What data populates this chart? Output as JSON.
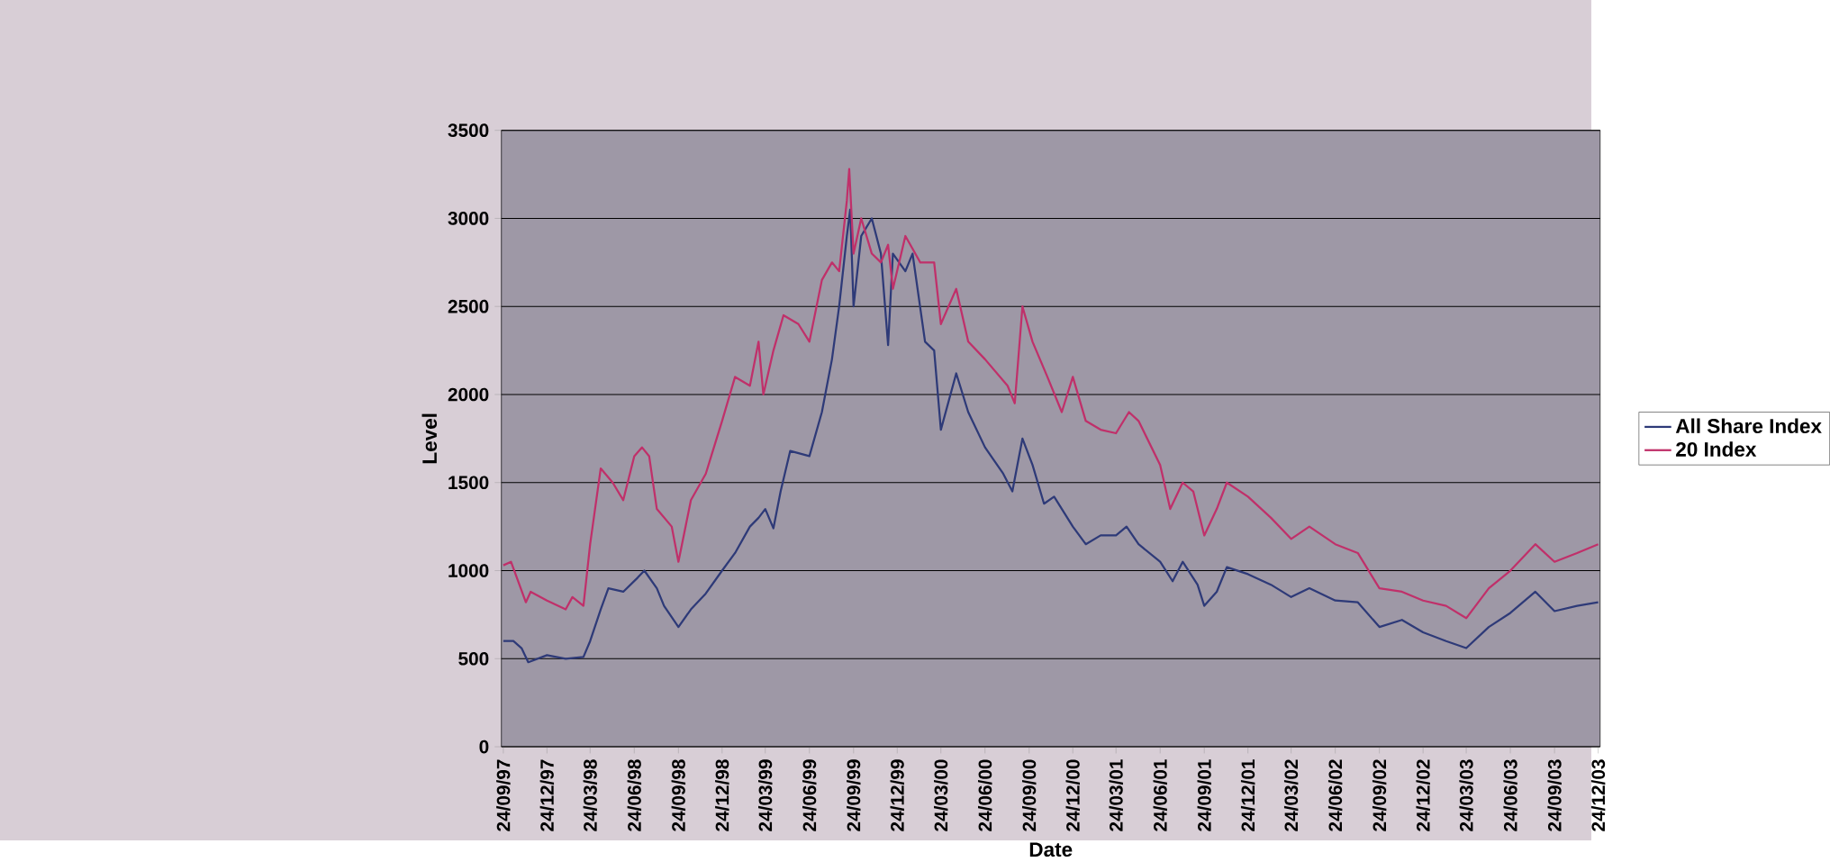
{
  "chart_data": {
    "type": "line",
    "xlabel": "Date",
    "ylabel": "Level",
    "xlim": [
      "1997-09-20",
      "2003-12-28"
    ],
    "ylim": [
      0,
      3500
    ],
    "yticks": [
      0,
      500,
      1000,
      1500,
      2000,
      2500,
      3000,
      3500
    ],
    "xticks": [
      {
        "value": "1997-09-24",
        "label": "24/09/97"
      },
      {
        "value": "1997-12-24",
        "label": "24/12/97"
      },
      {
        "value": "1998-03-24",
        "label": "24/03/98"
      },
      {
        "value": "1998-06-24",
        "label": "24/06/98"
      },
      {
        "value": "1998-09-24",
        "label": "24/09/98"
      },
      {
        "value": "1998-12-24",
        "label": "24/12/98"
      },
      {
        "value": "1999-03-24",
        "label": "24/03/99"
      },
      {
        "value": "1999-06-24",
        "label": "24/06/99"
      },
      {
        "value": "1999-09-24",
        "label": "24/09/99"
      },
      {
        "value": "1999-12-24",
        "label": "24/12/99"
      },
      {
        "value": "2000-03-24",
        "label": "24/03/00"
      },
      {
        "value": "2000-06-24",
        "label": "24/06/00"
      },
      {
        "value": "2000-09-24",
        "label": "24/09/00"
      },
      {
        "value": "2000-12-24",
        "label": "24/12/00"
      },
      {
        "value": "2001-03-24",
        "label": "24/03/01"
      },
      {
        "value": "2001-06-24",
        "label": "24/06/01"
      },
      {
        "value": "2001-09-24",
        "label": "24/09/01"
      },
      {
        "value": "2001-12-24",
        "label": "24/12/01"
      },
      {
        "value": "2002-03-24",
        "label": "24/03/02"
      },
      {
        "value": "2002-06-24",
        "label": "24/06/02"
      },
      {
        "value": "2002-09-24",
        "label": "24/09/02"
      },
      {
        "value": "2002-12-24",
        "label": "24/12/02"
      },
      {
        "value": "2003-03-24",
        "label": "24/03/03"
      },
      {
        "value": "2003-06-24",
        "label": "24/06/03"
      },
      {
        "value": "2003-09-24",
        "label": "24/09/03"
      },
      {
        "value": "2003-12-24",
        "label": "24/12/03"
      }
    ],
    "grid": "y",
    "legend": "right",
    "marker": "none",
    "line_style": "solid",
    "series": [
      {
        "name": "All Share Index",
        "color": "#2e3a78",
        "x": [
          "1997-09-24",
          "1997-10-15",
          "1997-11-01",
          "1997-11-15",
          "1997-12-24",
          "1998-02-01",
          "1998-03-10",
          "1998-03-24",
          "1998-04-15",
          "1998-05-01",
          "1998-06-01",
          "1998-07-01",
          "1998-07-15",
          "1998-08-10",
          "1998-08-25",
          "1998-09-24",
          "1998-10-20",
          "1998-11-20",
          "1998-12-24",
          "1999-01-20",
          "1999-02-20",
          "1999-03-10",
          "1999-03-24",
          "1999-04-10",
          "1999-04-25",
          "1999-05-15",
          "1999-06-24",
          "1999-07-20",
          "1999-08-10",
          "1999-08-25",
          "1999-09-10",
          "1999-09-17",
          "1999-09-24",
          "1999-10-10",
          "1999-11-01",
          "1999-11-20",
          "1999-12-05",
          "1999-12-15",
          "2000-01-10",
          "2000-01-25",
          "2000-02-20",
          "2000-03-10",
          "2000-03-24",
          "2000-04-25",
          "2000-05-20",
          "2000-06-24",
          "2000-08-01",
          "2000-08-20",
          "2000-09-10",
          "2000-10-01",
          "2000-10-25",
          "2000-11-15",
          "2000-12-24",
          "2001-01-20",
          "2001-02-20",
          "2001-03-24",
          "2001-04-15",
          "2001-05-10",
          "2001-06-24",
          "2001-07-20",
          "2001-08-10",
          "2001-09-10",
          "2001-09-24",
          "2001-10-20",
          "2001-11-10",
          "2001-12-24",
          "2002-02-10",
          "2002-03-24",
          "2002-05-01",
          "2002-06-24",
          "2002-08-10",
          "2002-09-24",
          "2002-11-10",
          "2002-12-24",
          "2003-02-10",
          "2003-03-24",
          "2003-05-10",
          "2003-06-24",
          "2003-08-15",
          "2003-09-24",
          "2003-11-10",
          "2003-12-24"
        ],
        "values": [
          600,
          600,
          560,
          480,
          520,
          500,
          510,
          600,
          780,
          900,
          880,
          960,
          1000,
          900,
          800,
          680,
          780,
          870,
          1000,
          1100,
          1250,
          1300,
          1350,
          1240,
          1450,
          1680,
          1650,
          1900,
          2200,
          2500,
          2900,
          3050,
          2500,
          2900,
          3000,
          2800,
          2280,
          2800,
          2700,
          2800,
          2300,
          2250,
          1800,
          2120,
          1900,
          1700,
          1550,
          1450,
          1750,
          1600,
          1380,
          1420,
          1250,
          1150,
          1200,
          1200,
          1250,
          1150,
          1050,
          940,
          1050,
          920,
          800,
          880,
          1020,
          980,
          920,
          850,
          900,
          830,
          820,
          680,
          720,
          650,
          600,
          560,
          680,
          760,
          880,
          770,
          800,
          820
        ]
      },
      {
        "name": "20 Index",
        "color": "#c0306a",
        "x": [
          "1997-09-24",
          "1997-10-10",
          "1997-11-10",
          "1997-11-20",
          "1997-12-24",
          "1998-02-01",
          "1998-02-15",
          "1998-03-10",
          "1998-03-24",
          "1998-04-15",
          "1998-05-10",
          "1998-06-01",
          "1998-06-24",
          "1998-07-10",
          "1998-07-25",
          "1998-08-10",
          "1998-09-10",
          "1998-09-24",
          "1998-10-20",
          "1998-11-20",
          "1998-12-24",
          "1999-01-20",
          "1999-02-20",
          "1999-03-10",
          "1999-03-20",
          "1999-04-10",
          "1999-05-01",
          "1999-06-01",
          "1999-06-24",
          "1999-07-20",
          "1999-08-10",
          "1999-08-25",
          "1999-09-10",
          "1999-09-15",
          "1999-09-24",
          "1999-10-10",
          "1999-11-01",
          "1999-11-20",
          "1999-12-05",
          "1999-12-15",
          "2000-01-10",
          "2000-02-10",
          "2000-03-10",
          "2000-03-24",
          "2000-04-25",
          "2000-05-20",
          "2000-06-24",
          "2000-08-10",
          "2000-08-25",
          "2000-09-10",
          "2000-10-01",
          "2000-11-01",
          "2000-12-01",
          "2000-12-24",
          "2001-01-20",
          "2001-02-20",
          "2001-03-24",
          "2001-04-20",
          "2001-05-10",
          "2001-06-24",
          "2001-07-15",
          "2001-08-10",
          "2001-09-01",
          "2001-09-24",
          "2001-10-20",
          "2001-11-10",
          "2001-12-24",
          "2002-02-10",
          "2002-03-24",
          "2002-05-01",
          "2002-06-24",
          "2002-08-10",
          "2002-09-24",
          "2002-11-10",
          "2002-12-24",
          "2003-02-10",
          "2003-03-24",
          "2003-05-10",
          "2003-06-24",
          "2003-08-15",
          "2003-09-24",
          "2003-11-10",
          "2003-12-24"
        ],
        "values": [
          1030,
          1050,
          820,
          880,
          830,
          780,
          850,
          800,
          1150,
          1580,
          1500,
          1400,
          1650,
          1700,
          1650,
          1350,
          1250,
          1050,
          1400,
          1550,
          1850,
          2100,
          2050,
          2300,
          2000,
          2250,
          2450,
          2400,
          2300,
          2650,
          2750,
          2700,
          3100,
          3280,
          2800,
          3000,
          2800,
          2750,
          2850,
          2600,
          2900,
          2750,
          2750,
          2400,
          2600,
          2300,
          2200,
          2050,
          1950,
          2500,
          2300,
          2100,
          1900,
          2100,
          1850,
          1800,
          1780,
          1900,
          1850,
          1600,
          1350,
          1500,
          1450,
          1200,
          1350,
          1500,
          1420,
          1300,
          1180,
          1250,
          1150,
          1100,
          900,
          880,
          830,
          800,
          730,
          900,
          1000,
          1150,
          1050,
          1100,
          1150
        ]
      }
    ]
  }
}
